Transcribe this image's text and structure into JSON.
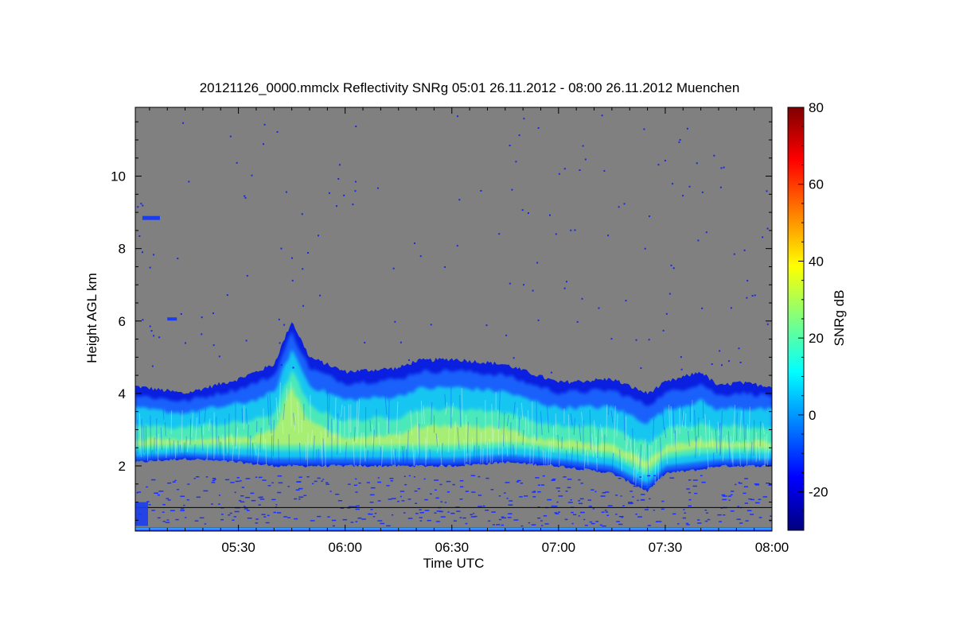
{
  "chart_data": {
    "type": "heatmap",
    "title": "20121126_0000.mmclx Reflectivity SNRg   05:01 26.11.2012 - 08:00 26.11.2012 Muenchen",
    "xlabel": "Time UTC",
    "ylabel": "Height AGL km",
    "x_unit": "hours UTC",
    "xlim": [
      "05:01",
      "08:00"
    ],
    "ylim": [
      0.2,
      11.9
    ],
    "x_ticks": [
      "05:30",
      "06:00",
      "06:30",
      "07:00",
      "07:30",
      "08:00"
    ],
    "y_ticks": [
      2,
      4,
      6,
      8,
      10
    ],
    "background_color": "#808080",
    "colorbar": {
      "label": "SNRg dB",
      "range": [
        -30,
        80
      ],
      "ticks": [
        -20,
        0,
        20,
        40,
        60,
        80
      ],
      "colormap": "jet"
    },
    "cloud_layer": {
      "description": "Main reflectivity layer",
      "times": [
        "05:01",
        "05:15",
        "05:30",
        "05:40",
        "05:45",
        "05:50",
        "06:00",
        "06:15",
        "06:20",
        "06:30",
        "06:45",
        "07:00",
        "07:15",
        "07:25",
        "07:30",
        "07:40",
        "07:45",
        "07:50",
        "08:00"
      ],
      "top_km": [
        4.2,
        4.0,
        4.4,
        4.8,
        6.0,
        5.0,
        4.6,
        4.7,
        4.9,
        4.95,
        4.8,
        4.3,
        4.4,
        4.0,
        4.3,
        4.6,
        4.2,
        4.3,
        4.2
      ],
      "base_km": [
        2.1,
        2.2,
        2.1,
        2.0,
        2.0,
        2.0,
        2.0,
        2.0,
        2.0,
        2.0,
        2.1,
        2.0,
        1.8,
        1.3,
        1.8,
        1.9,
        2.0,
        2.0,
        2.0
      ],
      "peak_snr_db": 35
    },
    "noise_bands_km": [
      0.3,
      0.85
    ]
  }
}
